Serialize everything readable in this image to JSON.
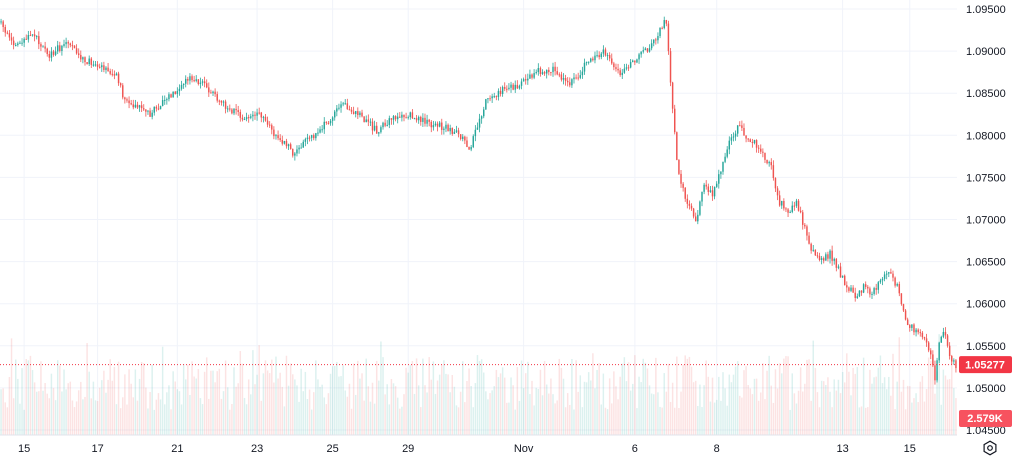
{
  "chart_data": {
    "type": "candlestick",
    "instrument_hint": "EUR/USD",
    "x_ticks": [
      "15",
      "17",
      "21",
      "23",
      "25",
      "29",
      "Nov",
      "6",
      "8",
      "13",
      "15"
    ],
    "y_ticks": [
      "1.09500",
      "1.09000",
      "1.08500",
      "1.08000",
      "1.07500",
      "1.07000",
      "1.06500",
      "1.06000",
      "1.05500",
      "1.05000",
      "1.04500"
    ],
    "ylim": [
      1.044,
      1.0965
    ],
    "grid": true,
    "up_color": "#26a69a",
    "down_color": "#ef5350",
    "current_price": "1.05277",
    "current_price_value": 1.05277,
    "current_price_color": "#f23645",
    "volume_label": "2.579K",
    "volume_color": "#f7525f",
    "price_path": [
      [
        0,
        1.0935
      ],
      [
        8,
        1.0905
      ],
      [
        16,
        1.092
      ],
      [
        24,
        1.0895
      ],
      [
        32,
        1.091
      ],
      [
        40,
        1.089
      ],
      [
        48,
        1.0885
      ],
      [
        56,
        1.087
      ],
      [
        60,
        1.084
      ],
      [
        68,
        1.0835
      ],
      [
        72,
        1.0825
      ],
      [
        80,
        1.0845
      ],
      [
        92,
        1.087
      ],
      [
        100,
        1.0855
      ],
      [
        108,
        1.0835
      ],
      [
        116,
        1.082
      ],
      [
        124,
        1.0825
      ],
      [
        132,
        1.08
      ],
      [
        140,
        1.078
      ],
      [
        148,
        1.0795
      ],
      [
        156,
        1.0815
      ],
      [
        164,
        1.0835
      ],
      [
        172,
        1.0825
      ],
      [
        180,
        1.0805
      ],
      [
        188,
        1.082
      ],
      [
        196,
        1.0825
      ],
      [
        204,
        1.0815
      ],
      [
        212,
        1.081
      ],
      [
        220,
        1.08
      ],
      [
        224,
        1.078
      ],
      [
        232,
        1.084
      ],
      [
        240,
        1.0855
      ],
      [
        248,
        1.086
      ],
      [
        256,
        1.0875
      ],
      [
        264,
        1.088
      ],
      [
        272,
        1.086
      ],
      [
        280,
        1.0885
      ],
      [
        288,
        1.09
      ],
      [
        296,
        1.0875
      ],
      [
        304,
        1.089
      ],
      [
        312,
        1.091
      ],
      [
        316,
        1.093
      ],
      [
        318,
        1.0935
      ],
      [
        320,
        1.086
      ],
      [
        322,
        1.08
      ],
      [
        324,
        1.075
      ],
      [
        328,
        1.072
      ],
      [
        332,
        1.07
      ],
      [
        336,
        1.074
      ],
      [
        340,
        1.073
      ],
      [
        344,
        1.076
      ],
      [
        348,
        1.079
      ],
      [
        352,
        1.081
      ],
      [
        356,
        1.08
      ],
      [
        360,
        1.079
      ],
      [
        364,
        1.078
      ],
      [
        368,
        1.076
      ],
      [
        372,
        1.072
      ],
      [
        376,
        1.071
      ],
      [
        380,
        1.072
      ],
      [
        384,
        1.069
      ],
      [
        388,
        1.066
      ],
      [
        392,
        1.065
      ],
      [
        396,
        1.066
      ],
      [
        400,
        1.064
      ],
      [
        404,
        1.062
      ],
      [
        408,
        1.061
      ],
      [
        412,
        1.062
      ],
      [
        416,
        1.061
      ],
      [
        420,
        1.063
      ],
      [
        424,
        1.064
      ],
      [
        428,
        1.062
      ],
      [
        432,
        1.058
      ],
      [
        436,
        1.057
      ],
      [
        440,
        1.056
      ],
      [
        444,
        1.054
      ],
      [
        446,
        1.051
      ],
      [
        448,
        1.055
      ],
      [
        450,
        1.057
      ],
      [
        452,
        1.055
      ],
      [
        454,
        1.053
      ],
      [
        456,
        1.0528
      ]
    ]
  }
}
